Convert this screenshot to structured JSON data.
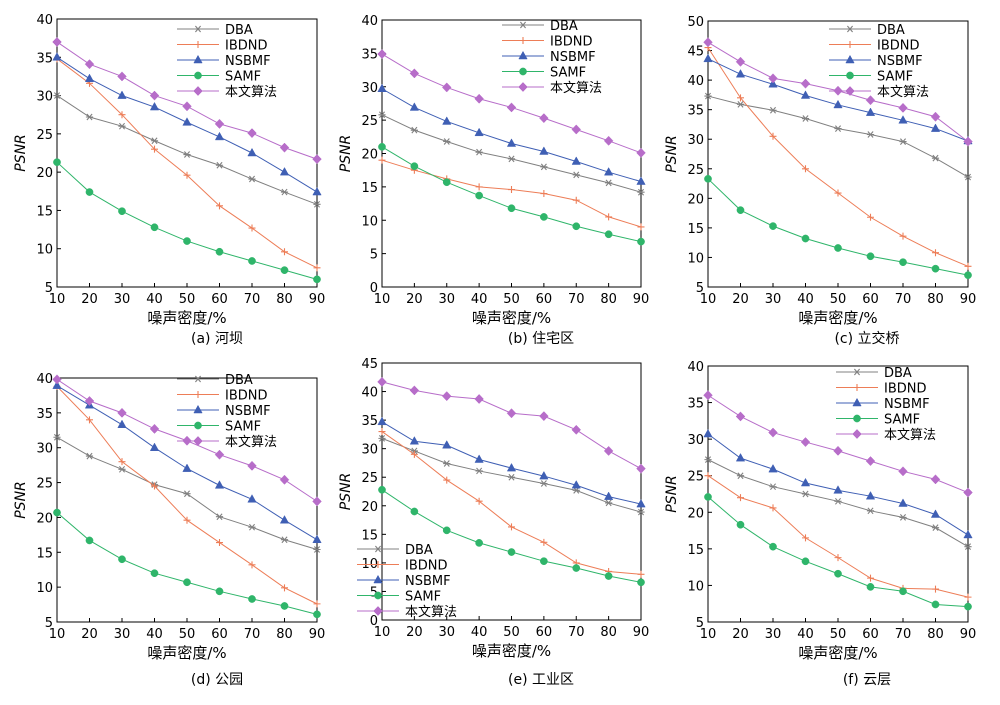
{
  "figure": {
    "xlabel": "噪声密度/%",
    "ylabel": "PSNR"
  },
  "chart_data": [
    {
      "type": "line",
      "caption": "(a) 河坝",
      "x": [
        10,
        20,
        30,
        40,
        50,
        60,
        70,
        80,
        90
      ],
      "xlim": [
        10,
        90
      ],
      "ylim": [
        5,
        40
      ],
      "yticks": [
        5,
        10,
        15,
        20,
        25,
        30,
        35,
        40
      ],
      "xlabel": "噪声密度/%",
      "ylabel": "PSNR",
      "grid": false,
      "legend": "top-right",
      "series": [
        {
          "name": "DBA",
          "values": [
            30.0,
            27.2,
            26.0,
            24.1,
            22.3,
            20.9,
            19.1,
            17.4,
            15.8
          ]
        },
        {
          "name": "IBDND",
          "values": [
            34.8,
            31.6,
            27.5,
            23.0,
            19.6,
            15.6,
            12.7,
            9.6,
            7.5
          ]
        },
        {
          "name": "NSBMF",
          "values": [
            35.0,
            32.2,
            30.0,
            28.5,
            26.5,
            24.6,
            22.5,
            20.0,
            17.4
          ]
        },
        {
          "name": "SAMF",
          "values": [
            21.3,
            17.4,
            14.9,
            12.8,
            11.0,
            9.6,
            8.4,
            7.2,
            6.0
          ]
        },
        {
          "name": "本文算法",
          "values": [
            37.0,
            34.1,
            32.5,
            30.0,
            28.6,
            26.3,
            25.1,
            23.2,
            21.7
          ]
        }
      ]
    },
    {
      "type": "line",
      "caption": "(b) 住宅区",
      "x": [
        10,
        20,
        30,
        40,
        50,
        60,
        70,
        80,
        90
      ],
      "xlim": [
        10,
        90
      ],
      "ylim": [
        0,
        40
      ],
      "yticks": [
        0,
        5,
        10,
        15,
        20,
        25,
        30,
        35,
        40
      ],
      "xlabel": "噪声密度/%",
      "ylabel": "PSNR",
      "grid": false,
      "legend": "top-right",
      "series": [
        {
          "name": "DBA",
          "values": [
            25.8,
            23.5,
            21.8,
            20.2,
            19.2,
            18.0,
            16.8,
            15.6,
            14.2
          ]
        },
        {
          "name": "IBDND",
          "values": [
            19.0,
            17.5,
            16.2,
            15.0,
            14.6,
            14.0,
            13.0,
            10.5,
            9.0
          ]
        },
        {
          "name": "NSBMF",
          "values": [
            29.7,
            26.9,
            24.8,
            23.1,
            21.5,
            20.3,
            18.8,
            17.2,
            15.8
          ]
        },
        {
          "name": "SAMF",
          "values": [
            21.0,
            18.1,
            15.7,
            13.7,
            11.8,
            10.5,
            9.1,
            7.9,
            6.8
          ]
        },
        {
          "name": "本文算法",
          "values": [
            34.9,
            32.0,
            29.9,
            28.2,
            26.9,
            25.3,
            23.6,
            21.9,
            20.1
          ]
        }
      ]
    },
    {
      "type": "line",
      "caption": "(c) 立交桥",
      "x": [
        10,
        20,
        30,
        40,
        50,
        60,
        70,
        80,
        90
      ],
      "xlim": [
        10,
        90
      ],
      "ylim": [
        5,
        50
      ],
      "yticks": [
        5,
        10,
        15,
        20,
        25,
        30,
        35,
        40,
        45,
        50
      ],
      "xlabel": "噪声密度/%",
      "ylabel": "PSNR",
      "grid": false,
      "legend": "top-right",
      "series": [
        {
          "name": "DBA",
          "values": [
            37.3,
            35.9,
            34.9,
            33.5,
            31.8,
            30.8,
            29.6,
            26.8,
            23.6
          ]
        },
        {
          "name": "IBDND",
          "values": [
            45.5,
            37.0,
            30.5,
            25.0,
            20.9,
            16.8,
            13.6,
            10.8,
            8.5
          ]
        },
        {
          "name": "NSBMF",
          "values": [
            43.6,
            41.0,
            39.3,
            37.4,
            35.8,
            34.5,
            33.2,
            31.8,
            29.7
          ]
        },
        {
          "name": "SAMF",
          "values": [
            23.3,
            18.0,
            15.3,
            13.2,
            11.6,
            10.2,
            9.2,
            8.1,
            7.0
          ]
        },
        {
          "name": "本文算法",
          "values": [
            46.4,
            43.1,
            40.3,
            39.4,
            38.2,
            36.6,
            35.3,
            33.8,
            29.6
          ]
        }
      ]
    },
    {
      "type": "line",
      "caption": "(d) 公园",
      "x": [
        10,
        20,
        30,
        40,
        50,
        60,
        70,
        80,
        90
      ],
      "xlim": [
        10,
        90
      ],
      "ylim": [
        5,
        40
      ],
      "yticks": [
        5,
        10,
        15,
        20,
        25,
        30,
        35,
        40
      ],
      "xlabel": "噪声密度/%",
      "ylabel": "PSNR",
      "grid": false,
      "legend": "top-right",
      "series": [
        {
          "name": "DBA",
          "values": [
            31.5,
            28.8,
            26.9,
            24.7,
            23.4,
            20.1,
            18.6,
            16.8,
            15.4
          ]
        },
        {
          "name": "IBDND",
          "values": [
            38.8,
            34.0,
            28.0,
            24.5,
            19.6,
            16.4,
            13.2,
            9.9,
            7.6
          ]
        },
        {
          "name": "NSBMF",
          "values": [
            38.9,
            36.1,
            33.3,
            30.0,
            27.0,
            24.6,
            22.6,
            19.6,
            16.8
          ]
        },
        {
          "name": "SAMF",
          "values": [
            20.7,
            16.7,
            14.0,
            12.0,
            10.7,
            9.4,
            8.3,
            7.3,
            6.1
          ]
        },
        {
          "name": "本文算法",
          "values": [
            39.8,
            36.7,
            35.0,
            32.7,
            31.0,
            29.0,
            27.4,
            25.4,
            22.3
          ]
        }
      ]
    },
    {
      "type": "line",
      "caption": "(e) 工业区",
      "x": [
        10,
        20,
        30,
        40,
        50,
        60,
        70,
        80,
        90
      ],
      "xlim": [
        10,
        90
      ],
      "ylim": [
        0,
        45
      ],
      "yticks": [
        0,
        5,
        10,
        15,
        20,
        25,
        30,
        35,
        40,
        45
      ],
      "xlabel": "噪声密度/%",
      "ylabel": "PSNR",
      "grid": false,
      "legend": "bottom-left",
      "series": [
        {
          "name": "DBA",
          "values": [
            31.8,
            29.6,
            27.4,
            26.1,
            25.0,
            23.9,
            22.7,
            20.5,
            18.9
          ]
        },
        {
          "name": "IBDND",
          "values": [
            33.0,
            29.0,
            24.5,
            20.8,
            16.3,
            13.6,
            10.0,
            8.5,
            8.0
          ]
        },
        {
          "name": "NSBMF",
          "values": [
            34.7,
            31.3,
            30.6,
            28.1,
            26.6,
            25.2,
            23.6,
            21.6,
            20.3
          ]
        },
        {
          "name": "SAMF",
          "values": [
            22.8,
            19.0,
            15.7,
            13.5,
            11.9,
            10.3,
            9.1,
            7.7,
            6.6
          ]
        },
        {
          "name": "本文算法",
          "values": [
            41.7,
            40.2,
            39.2,
            38.7,
            36.2,
            35.7,
            33.3,
            29.6,
            26.5
          ]
        }
      ]
    },
    {
      "type": "line",
      "caption": "(f) 云层",
      "x": [
        10,
        20,
        30,
        40,
        50,
        60,
        70,
        80,
        90
      ],
      "xlim": [
        10,
        90
      ],
      "ylim": [
        5,
        40
      ],
      "yticks": [
        5,
        10,
        15,
        20,
        25,
        30,
        35,
        40
      ],
      "xlabel": "噪声密度/%",
      "ylabel": "PSNR",
      "grid": false,
      "legend": "top-right",
      "series": [
        {
          "name": "DBA",
          "values": [
            27.2,
            25.0,
            23.5,
            22.5,
            21.5,
            20.2,
            19.3,
            17.9,
            15.3
          ]
        },
        {
          "name": "IBDND",
          "values": [
            25.0,
            22.0,
            20.6,
            16.5,
            13.8,
            11.0,
            9.6,
            9.5,
            8.4
          ]
        },
        {
          "name": "NSBMF",
          "values": [
            30.7,
            27.4,
            25.9,
            24.0,
            23.0,
            22.2,
            21.2,
            19.7,
            16.9
          ]
        },
        {
          "name": "SAMF",
          "values": [
            22.1,
            18.3,
            15.3,
            13.3,
            11.6,
            9.8,
            9.2,
            7.4,
            7.1
          ]
        },
        {
          "name": "本文算法",
          "values": [
            36.0,
            33.1,
            30.9,
            29.6,
            28.4,
            27.0,
            25.6,
            24.5,
            22.7
          ]
        }
      ]
    }
  ],
  "series_styles": [
    {
      "name": "DBA",
      "color": "#808080",
      "marker": "asterisk"
    },
    {
      "name": "IBDND",
      "color": "#ed7d57",
      "marker": "plus"
    },
    {
      "name": "NSBMF",
      "color": "#3f5fb4",
      "marker": "triangle"
    },
    {
      "name": "SAMF",
      "color": "#2fb56a",
      "marker": "circle"
    },
    {
      "name": "本文算法",
      "color": "#b76dc9",
      "marker": "diamond"
    }
  ]
}
